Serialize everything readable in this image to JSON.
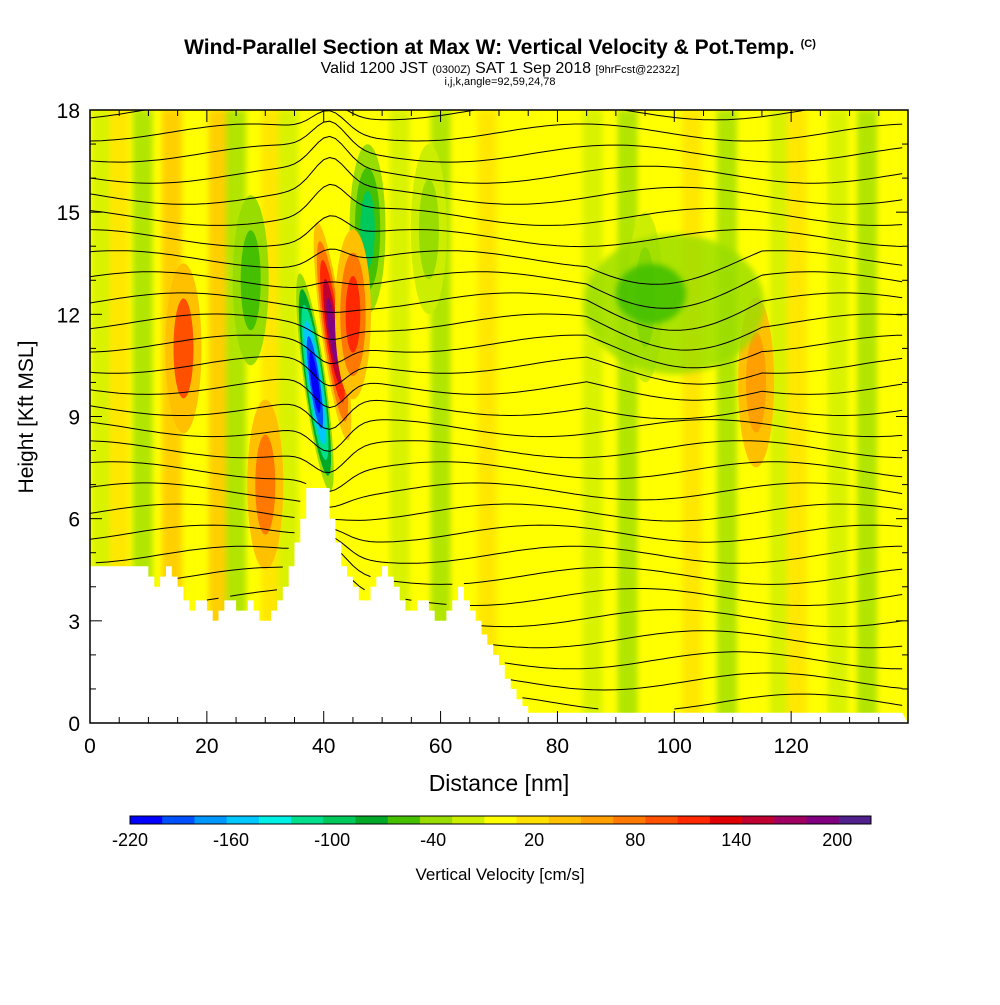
{
  "title": {
    "main": "Wind-Parallel Section at Max W: Vertical Velocity & Pot.Temp.",
    "copyright": "(C)",
    "valid_prefix": "Valid 1200 JST",
    "valid_utc": "(0300Z)",
    "valid_date": "SAT 1 Sep 2018",
    "forecast": "[9hrFcst@2232z]",
    "params": "i,j,k,angle=92,59,24,78"
  },
  "colors": {
    "background_field": "#ffff00",
    "terrain": "#ffffff",
    "contour": "#000000"
  },
  "chart_data": {
    "type": "heatmap",
    "xlabel": "Distance [nm]",
    "ylabel": "Height [Kft MSL]",
    "xlim": [
      0,
      140
    ],
    "ylim": [
      0,
      18
    ],
    "xticks": [
      0,
      20,
      40,
      60,
      80,
      100,
      120
    ],
    "yticks": [
      0,
      3,
      6,
      9,
      12,
      15,
      18
    ],
    "colorbar": {
      "label": "Vertical Velocity [cm/s]",
      "range": [
        -220,
        220
      ],
      "tick_values": [
        -220,
        -160,
        -100,
        -40,
        20,
        80,
        140,
        200
      ],
      "colors": [
        "#0000ff",
        "#0050ff",
        "#0096ff",
        "#00c8ff",
        "#00f0e6",
        "#00e08c",
        "#00c85a",
        "#00a828",
        "#44c000",
        "#99dd00",
        "#ccee00",
        "#ffff00",
        "#ffe000",
        "#ffc000",
        "#ffa000",
        "#ff7800",
        "#ff5000",
        "#ff2800",
        "#e00000",
        "#c00030",
        "#a00060",
        "#800080",
        "#50208c"
      ]
    },
    "terrain_profile": {
      "distance_nm": [
        0,
        5,
        10,
        11,
        12,
        13,
        14,
        15,
        16,
        17,
        18,
        19,
        20,
        21,
        22,
        23,
        24,
        25,
        26,
        27,
        28,
        29,
        30,
        31,
        32,
        33,
        34,
        35,
        36,
        37,
        38,
        39,
        40,
        41,
        42,
        43,
        44,
        45,
        46,
        47,
        48,
        49,
        50,
        51,
        52,
        53,
        54,
        55,
        56,
        57,
        58,
        59,
        60,
        61,
        62,
        63,
        64,
        65,
        66,
        67,
        68,
        69,
        70,
        71,
        72,
        73,
        74,
        75,
        76,
        77,
        78,
        79,
        80,
        90,
        100,
        110,
        120,
        125,
        130,
        135,
        139
      ],
      "height_kft": [
        4.6,
        4.6,
        4.3,
        4.0,
        4.3,
        4.6,
        4.3,
        4.0,
        3.6,
        3.3,
        3.6,
        3.6,
        3.3,
        3.0,
        3.3,
        3.6,
        3.6,
        3.3,
        3.3,
        3.6,
        3.3,
        3.0,
        3.0,
        3.3,
        3.6,
        4.0,
        4.6,
        5.3,
        6.0,
        6.9,
        6.9,
        6.9,
        6.9,
        6.0,
        5.3,
        4.6,
        4.3,
        4.0,
        3.6,
        3.6,
        4.0,
        4.3,
        4.6,
        4.3,
        4.0,
        3.6,
        3.3,
        3.3,
        3.6,
        3.6,
        3.3,
        3.0,
        3.0,
        3.3,
        3.6,
        4.0,
        3.6,
        3.3,
        3.0,
        2.6,
        2.3,
        2.0,
        1.7,
        1.3,
        1.0,
        0.7,
        0.5,
        0.3,
        0.3,
        0.3,
        0.3,
        0.3,
        0.3,
        0.3,
        0.3,
        0.3,
        0.3,
        0.3,
        0.3,
        0.3,
        0.3
      ]
    },
    "velocity_features": [
      {
        "kind": "updraft",
        "x_nm": 41.5,
        "y_kft": 11.5,
        "peak_cm_s": 200
      },
      {
        "kind": "downdraft",
        "x_nm": 38.5,
        "y_kft": 10.0,
        "peak_cm_s": -220
      },
      {
        "kind": "downdraft",
        "x_nm": 47.5,
        "y_kft": 14.5,
        "peak_cm_s": -100
      },
      {
        "kind": "updraft",
        "x_nm": 45.0,
        "y_kft": 12.0,
        "peak_cm_s": 110
      },
      {
        "kind": "downdraft",
        "x_nm": 27.5,
        "y_kft": 13.0,
        "peak_cm_s": -60
      },
      {
        "kind": "updraft",
        "x_nm": 16.0,
        "y_kft": 11.0,
        "peak_cm_s": 90
      },
      {
        "kind": "updraft",
        "x_nm": 30.0,
        "y_kft": 7.0,
        "peak_cm_s": 70
      },
      {
        "kind": "downdraft",
        "x_nm": 95.0,
        "y_kft": 12.5,
        "peak_cm_s": -50
      },
      {
        "kind": "downdraft",
        "x_nm": 58.0,
        "y_kft": 14.5,
        "peak_cm_s": -40
      },
      {
        "kind": "updraft",
        "x_nm": 114.0,
        "y_kft": 10.0,
        "peak_cm_s": 60
      }
    ]
  }
}
